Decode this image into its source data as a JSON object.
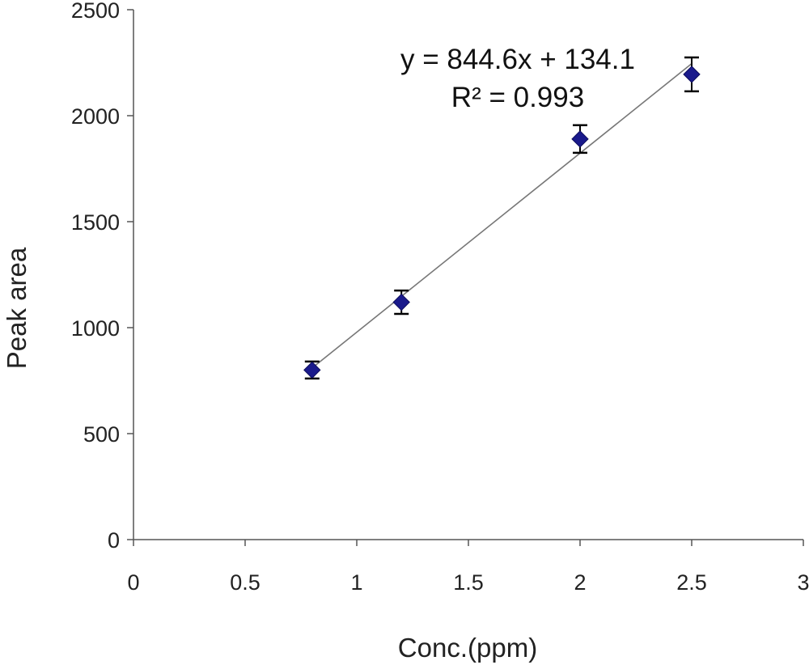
{
  "chart_data": {
    "type": "scatter",
    "xlabel": "Conc.(ppm)",
    "ylabel": "Peak area",
    "xlim": [
      0,
      3
    ],
    "ylim": [
      0,
      2500
    ],
    "x_ticks": [
      0,
      0.5,
      1,
      1.5,
      2,
      2.5,
      3
    ],
    "x_tick_labels": [
      "0",
      "0.5",
      "1",
      "1.5",
      "2",
      "2.5",
      "3"
    ],
    "y_ticks": [
      0,
      500,
      1000,
      1500,
      2000,
      2500
    ],
    "y_tick_labels": [
      "0",
      "500",
      "1000",
      "1500",
      "2000",
      "2500"
    ],
    "grid": false,
    "legend": "none",
    "series": [
      {
        "marker": "diamond",
        "color": "#1a1a8c",
        "points": [
          {
            "x": 0.8,
            "y": 800,
            "err": 40
          },
          {
            "x": 1.2,
            "y": 1120,
            "err": 55
          },
          {
            "x": 2.0,
            "y": 1890,
            "err": 65
          },
          {
            "x": 2.5,
            "y": 2195,
            "err": 80
          }
        ]
      }
    ],
    "trendline": {
      "slope": 844.6,
      "intercept": 134.1,
      "x_range": [
        0.8,
        2.5
      ],
      "color": "#777777"
    },
    "annotations": [
      "y = 844.6x + 134.1",
      "R² = 0.993"
    ]
  }
}
